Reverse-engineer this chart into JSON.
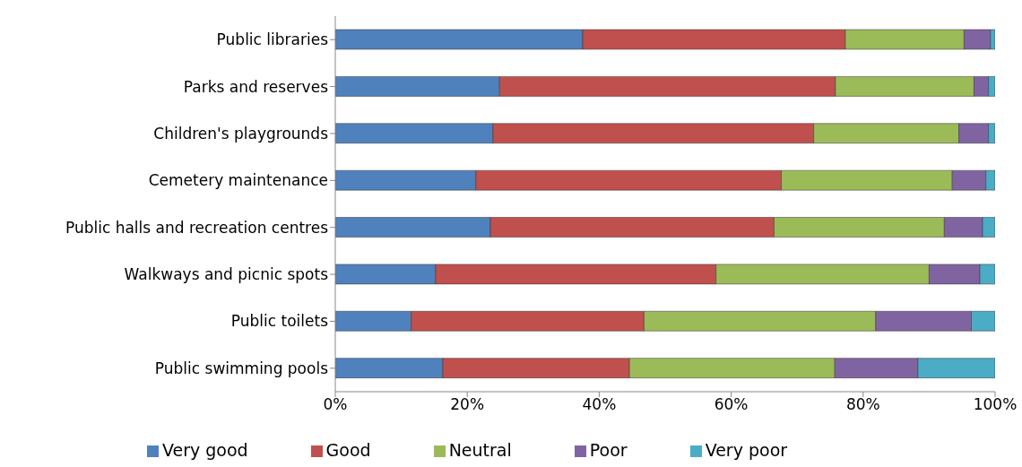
{
  "chart_data": {
    "type": "bar",
    "orientation": "horizontal",
    "stacked": true,
    "categories": [
      "Public libraries",
      "Parks and reserves",
      "Children's playgrounds",
      "Cemetery maintenance",
      "Public halls and recreation centres",
      "Walkways and picnic spots",
      "Public toilets",
      "Public swimming pools"
    ],
    "series": [
      {
        "name": "Very good",
        "color": "#4f81bd",
        "values": [
          37.5,
          24.9,
          23.9,
          21.3,
          23.5,
          15.2,
          11.5,
          16.3
        ]
      },
      {
        "name": "Good",
        "color": "#c0504d",
        "values": [
          39.8,
          50.9,
          48.6,
          46.3,
          43.0,
          42.5,
          35.3,
          28.3
        ]
      },
      {
        "name": "Neutral",
        "color": "#9bbb59",
        "values": [
          18.0,
          21.0,
          22.0,
          25.9,
          25.8,
          32.3,
          35.1,
          31.1
        ]
      },
      {
        "name": "Poor",
        "color": "#8064a2",
        "values": [
          4.0,
          2.2,
          4.5,
          5.1,
          5.8,
          7.7,
          14.5,
          12.6
        ]
      },
      {
        "name": "Very poor",
        "color": "#4bacc6",
        "values": [
          0.7,
          1.0,
          1.0,
          1.4,
          1.9,
          2.3,
          3.6,
          11.7
        ]
      }
    ],
    "xlim": [
      0,
      100
    ],
    "xticks": [
      {
        "value": 0,
        "label": "0%"
      },
      {
        "value": 20,
        "label": "20%"
      },
      {
        "value": 40,
        "label": "40%"
      },
      {
        "value": 60,
        "label": "60%"
      },
      {
        "value": 80,
        "label": "80%"
      },
      {
        "value": 100,
        "label": "100%"
      }
    ],
    "grid": false,
    "legend": "bottom"
  }
}
